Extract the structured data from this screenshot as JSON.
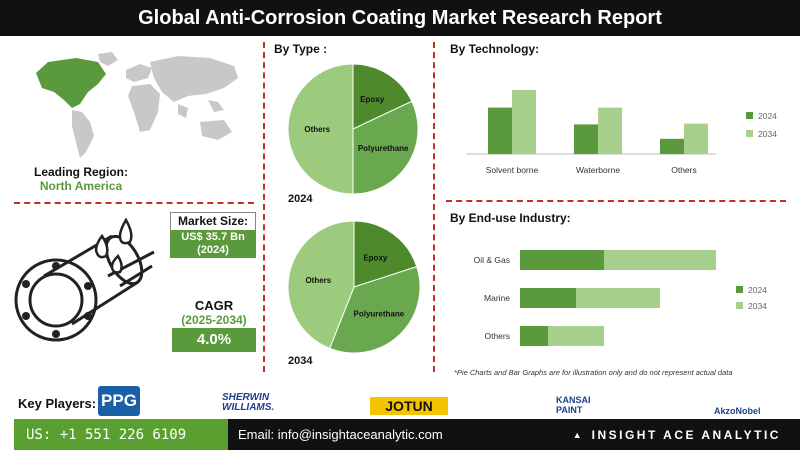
{
  "title": "Global Anti-Corrosion Coating Market Research Report",
  "leading_region": {
    "label": "Leading Region:",
    "value": "North America"
  },
  "market_size": {
    "label": "Market Size:",
    "value": "US$ 35.7 Bn",
    "year": "(2024)"
  },
  "cagr": {
    "label": "CAGR",
    "period": "(2025-2034)",
    "value": "4.0%"
  },
  "sections": {
    "type": "By  Type :",
    "technology": "By Technology:",
    "end_use": "By End-use Industry:"
  },
  "note": "*Pie Charts and Bar Graphs are for illustration only and do not represent actual data",
  "key_players": {
    "label": "Key Players:",
    "logos": [
      "PPG",
      "SHERWIN WILLIAMS.",
      "JOTUN",
      "KANSAI PAINT",
      "AkzoNobel"
    ]
  },
  "footer": {
    "phone": "US: +1 551 226 6109",
    "email": "Email: info@insightaceanalytic.com",
    "brand": "INSIGHT ACE ANALYTIC"
  },
  "colors": {
    "dark_green": "#5a9a3c",
    "light_green": "#a8d08d",
    "pie_light": "#9ccb7e",
    "pie_mid": "#6aa84f",
    "pie_dark": "#4e8a2c",
    "divider": "#c0302a"
  },
  "chart_data": [
    {
      "type": "pie",
      "title": "2024",
      "labels": [
        "Epoxy",
        "Polyurethane",
        "Others"
      ],
      "values": [
        18,
        32,
        50
      ]
    },
    {
      "type": "pie",
      "title": "2034",
      "labels": [
        "Epoxy",
        "Polyurethane",
        "Others"
      ],
      "values": [
        20,
        36,
        44
      ]
    },
    {
      "type": "bar",
      "categories": [
        "Solvent borne",
        "Waterborne",
        "Others"
      ],
      "series": [
        {
          "name": "2024",
          "values": [
            58,
            37,
            19
          ]
        },
        {
          "name": "2034",
          "values": [
            80,
            58,
            38
          ]
        }
      ],
      "ylim": [
        0,
        100
      ],
      "legend": "right"
    },
    {
      "type": "bar",
      "orientation": "horizontal",
      "stacked": true,
      "categories": [
        "Oil & Gas",
        "Marine",
        "Others"
      ],
      "series": [
        {
          "name": "2024",
          "values": [
            60,
            40,
            20
          ]
        },
        {
          "name": "2034",
          "values": [
            80,
            60,
            40
          ]
        }
      ],
      "xlim": [
        0,
        150
      ],
      "legend": "right"
    }
  ]
}
